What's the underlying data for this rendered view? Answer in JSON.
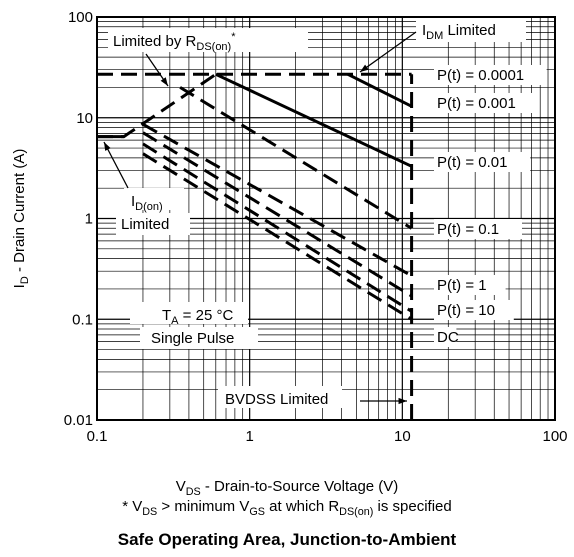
{
  "chart_data": {
    "type": "line",
    "title": "Safe Operating Area, Junction-to-Ambient",
    "xscale": "log",
    "yscale": "log",
    "xlim": [
      0.1,
      100
    ],
    "ylim": [
      0.01,
      100
    ],
    "grid": true,
    "xlabel": {
      "pre": "V",
      "sub": "DS",
      "post": " - Drain-to-Source Voltage (V)"
    },
    "ylabel": {
      "pre": "I",
      "sub": "D",
      "post": " - Drain Current (A)"
    },
    "footnote": {
      "p1": "* V",
      "s1": "DS",
      "p2": " > minimum V",
      "s2": "GS",
      "p3": " at which R",
      "s3": "DS(on)",
      "p4": " is specified"
    },
    "x_ticks": [
      {
        "value": 0.1,
        "label": "0.1"
      },
      {
        "value": 1,
        "label": "1"
      },
      {
        "value": 10,
        "label": "10"
      },
      {
        "value": 100,
        "label": "100"
      }
    ],
    "y_ticks": [
      {
        "value": 0.01,
        "label": "0.01"
      },
      {
        "value": 0.1,
        "label": "0.1"
      },
      {
        "value": 1,
        "label": "1"
      },
      {
        "value": 10,
        "label": "10"
      },
      {
        "value": 100,
        "label": "100"
      }
    ],
    "series": [
      {
        "name": "P(t) = 0.0001",
        "style": "solid",
        "points": [
          [
            4.4,
            27
          ],
          [
            11.5,
            13
          ]
        ]
      },
      {
        "name": "P(t) = 0.001",
        "style": "solid",
        "points": [
          [
            0.6,
            27
          ],
          [
            11.5,
            3.3
          ]
        ]
      },
      {
        "name": "P(t) = 0.01",
        "style": "dashed",
        "points": [
          [
            0.35,
            20
          ],
          [
            11.5,
            0.8
          ]
        ]
      },
      {
        "name": "P(t) = 0.1",
        "style": "dashed",
        "points": [
          [
            0.2,
            8.6
          ],
          [
            11.5,
            0.27
          ]
        ]
      },
      {
        "name": "P(t) = 1",
        "style": "dashed",
        "points": [
          [
            0.2,
            7.1
          ],
          [
            11.5,
            0.17
          ]
        ]
      },
      {
        "name": "P(t) = 10",
        "style": "dashed",
        "points": [
          [
            0.2,
            5.5
          ],
          [
            11.5,
            0.12
          ]
        ]
      },
      {
        "name": "DC",
        "style": "dashed",
        "points": [
          [
            0.2,
            4.4
          ],
          [
            11.5,
            0.1
          ]
        ]
      }
    ],
    "limits": [
      {
        "name": "IDM Limited",
        "style": "dashed",
        "points": [
          [
            0.1,
            27
          ],
          [
            11.5,
            27
          ]
        ]
      },
      {
        "name": "Limited by RDS(on)",
        "style": "dashed",
        "points": [
          [
            0.1,
            6.5
          ],
          [
            0.15,
            6.5
          ],
          [
            0.6,
            27
          ]
        ]
      },
      {
        "name": "BVDSS Limited",
        "style": "dashed",
        "points": [
          [
            11.5,
            0.01
          ],
          [
            11.5,
            27
          ]
        ]
      },
      {
        "name": "ID(on) Limited",
        "style": "solid",
        "points": [
          [
            0.1,
            6.5
          ],
          [
            0.15,
            6.5
          ]
        ]
      }
    ],
    "annotations": [
      {
        "id": "rds",
        "parts": [
          {
            "t": "Limited by R"
          },
          {
            "t": "DS(on)",
            "sub": true
          },
          {
            "t": "*",
            "sup": true
          }
        ]
      },
      {
        "id": "idm",
        "parts": [
          {
            "t": "I"
          },
          {
            "t": "DM",
            "sub": true
          },
          {
            "t": " Limited"
          }
        ]
      },
      {
        "id": "idon1",
        "parts": [
          {
            "t": "I"
          },
          {
            "t": "D(on)",
            "sub": true
          }
        ]
      },
      {
        "id": "idon2",
        "parts": [
          {
            "t": "Limited"
          }
        ]
      },
      {
        "id": "ta1",
        "parts": [
          {
            "t": "T"
          },
          {
            "t": "A",
            "sub": true
          },
          {
            "t": " = 25 °C"
          }
        ]
      },
      {
        "id": "ta2",
        "parts": [
          {
            "t": "Single Pulse"
          }
        ]
      },
      {
        "id": "bvdss",
        "parts": [
          {
            "t": "BVDSS Limited"
          }
        ]
      }
    ]
  }
}
